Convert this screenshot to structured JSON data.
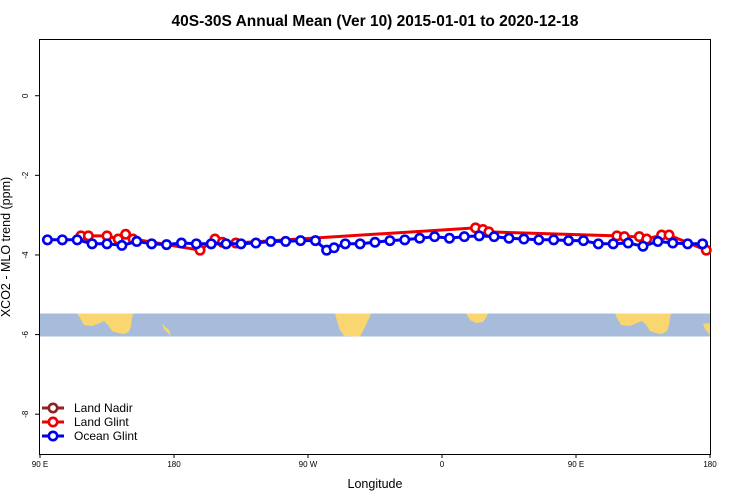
{
  "chart_data": {
    "type": "line",
    "title": "40S-30S Annual Mean (Ver 10)   2015-01-01 to 2020-12-18",
    "xlabel": "Longitude",
    "ylabel": "XCO2 - MLO trend (ppm)",
    "xlim": [
      90,
      540
    ],
    "ylim": [
      -9,
      1.4
    ],
    "x_ticks": [
      {
        "value": 90,
        "label": "90 E"
      },
      {
        "value": 180,
        "label": "180"
      },
      {
        "value": 270,
        "label": "90 W"
      },
      {
        "value": 360,
        "label": "0"
      },
      {
        "value": 450,
        "label": "90 E"
      },
      {
        "value": 540,
        "label": "180"
      }
    ],
    "y_ticks": [
      {
        "value": 0,
        "label": "0"
      },
      {
        "value": -2,
        "label": "-2"
      },
      {
        "value": -4,
        "label": "-4"
      },
      {
        "value": -6,
        "label": "-6"
      },
      {
        "value": -8,
        "label": "-8"
      }
    ],
    "legend_position": "bottom-left",
    "series": [
      {
        "name": "Land Nadir",
        "color": "#8b2323",
        "x": [],
        "y": []
      },
      {
        "name": "Land Glint",
        "color": "#ee0000",
        "x": [
          117.5,
          122.5,
          135,
          142.5,
          147.5,
          152.5,
          197.5,
          207.5,
          212.5,
          221.5,
          382.5,
          387.5,
          391.5,
          477.5,
          482.5,
          492.5,
          497.5,
          507.5,
          512.5,
          537.5
        ],
        "y": [
          -3.52,
          -3.52,
          -3.52,
          -3.6,
          -3.48,
          -3.6,
          -3.88,
          -3.6,
          -3.68,
          -3.7,
          -3.32,
          -3.36,
          -3.42,
          -3.52,
          -3.54,
          -3.54,
          -3.6,
          -3.5,
          -3.5,
          -3.88
        ]
      },
      {
        "name": "Ocean Glint",
        "color": "#0000ee",
        "x": [
          95,
          105,
          115,
          125,
          135,
          145,
          155,
          165,
          175,
          185,
          195,
          205,
          215,
          225,
          235,
          245,
          255,
          265,
          275,
          282.5,
          287.5,
          295,
          305,
          315,
          325,
          335,
          345,
          355,
          365,
          375,
          385,
          395,
          405,
          415,
          425,
          435,
          445,
          455,
          465,
          475,
          485,
          495,
          505,
          515,
          525,
          535
        ],
        "y": [
          -3.62,
          -3.62,
          -3.62,
          -3.72,
          -3.72,
          -3.76,
          -3.66,
          -3.72,
          -3.74,
          -3.7,
          -3.72,
          -3.72,
          -3.72,
          -3.72,
          -3.7,
          -3.66,
          -3.66,
          -3.64,
          -3.64,
          -3.88,
          -3.82,
          -3.72,
          -3.72,
          -3.68,
          -3.64,
          -3.62,
          -3.58,
          -3.54,
          -3.58,
          -3.54,
          -3.52,
          -3.54,
          -3.58,
          -3.6,
          -3.62,
          -3.62,
          -3.64,
          -3.64,
          -3.72,
          -3.72,
          -3.7,
          -3.78,
          -3.66,
          -3.7,
          -3.72,
          -3.72
        ]
      }
    ]
  }
}
